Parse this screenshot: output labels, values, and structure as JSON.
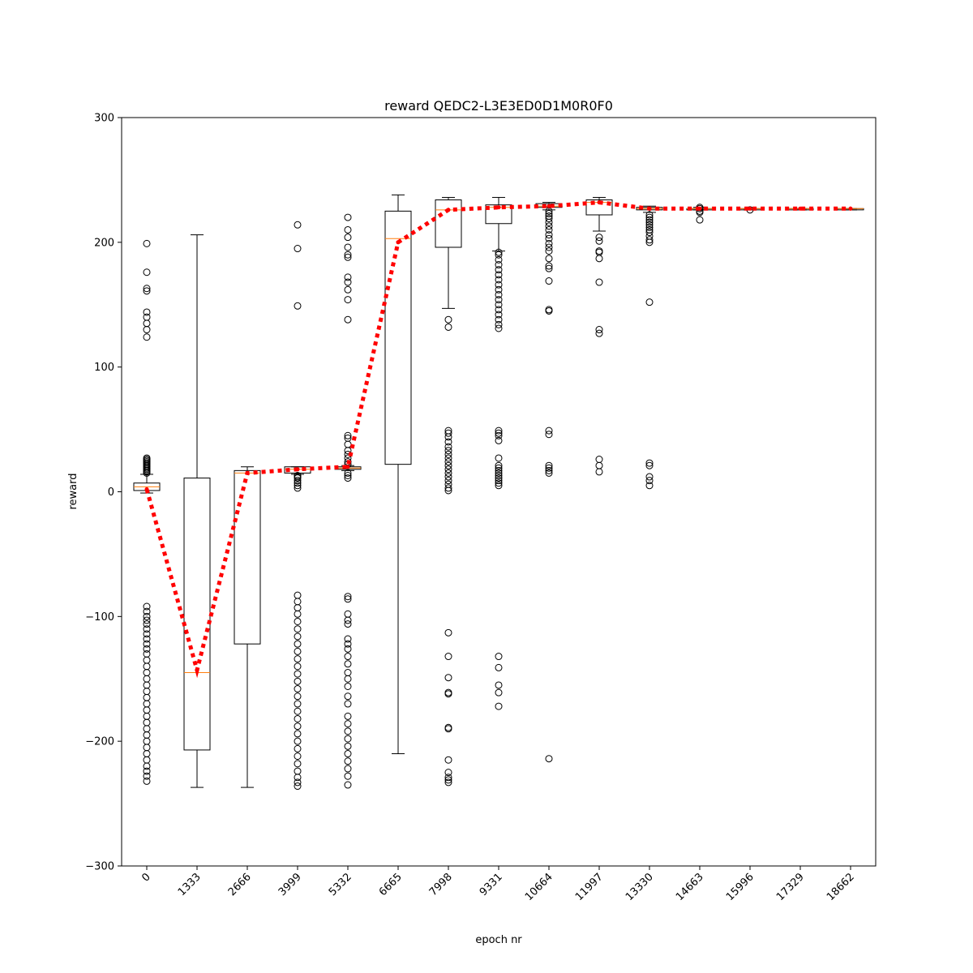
{
  "chart_data": {
    "type": "boxplot",
    "title": "reward QEDC2-L3E3ED0D1M0R0F0",
    "xlabel": "epoch nr",
    "ylabel": "reward",
    "ylim": [
      -300,
      300
    ],
    "yticks": [
      -300,
      -200,
      -100,
      0,
      100,
      200,
      300
    ],
    "categories": [
      "0",
      "1333",
      "2666",
      "3999",
      "5332",
      "6665",
      "7998",
      "9331",
      "10664",
      "11997",
      "13330",
      "14663",
      "15996",
      "17329",
      "18662"
    ],
    "grid": false,
    "legend": "none",
    "colors": {
      "box": "#000000",
      "median": "#ff7f0e",
      "mean_line": "#ff0000"
    },
    "boxes": [
      {
        "q1": 1,
        "median": 4,
        "q3": 7,
        "whisker_low": -1,
        "whisker_high": 14,
        "outliers": [
          199,
          176,
          163,
          161,
          144,
          140,
          135,
          130,
          124,
          27,
          26,
          25,
          24,
          23,
          22,
          21,
          20,
          19,
          18,
          17,
          16,
          15,
          -92,
          -96,
          -100,
          -103,
          -106,
          -110,
          -114,
          -118,
          -122,
          -126,
          -130,
          -135,
          -140,
          -145,
          -150,
          -155,
          -160,
          -165,
          -170,
          -175,
          -180,
          -185,
          -190,
          -195,
          -200,
          -205,
          -210,
          -215,
          -220,
          -224,
          -228,
          -232
        ]
      },
      {
        "q1": -207,
        "median": -145,
        "q3": 11,
        "whisker_low": -237,
        "whisker_high": 206,
        "outliers": []
      },
      {
        "q1": -122,
        "median": 15,
        "q3": 17,
        "whisker_low": -237,
        "whisker_high": 20,
        "outliers": []
      },
      {
        "q1": 15,
        "median": 18,
        "q3": 20,
        "whisker_low": 14,
        "whisker_high": 20,
        "outliers": [
          214,
          195,
          149,
          13,
          12,
          11,
          9,
          7,
          5,
          3,
          -83,
          -88,
          -93,
          -98,
          -104,
          -110,
          -116,
          -122,
          -128,
          -134,
          -140,
          -146,
          -152,
          -158,
          -164,
          -170,
          -176,
          -182,
          -188,
          -194,
          -200,
          -206,
          -212,
          -218,
          -224,
          -229,
          -233,
          -236
        ]
      },
      {
        "q1": 18,
        "median": 19,
        "q3": 20,
        "whisker_low": 17,
        "whisker_high": 21,
        "outliers": [
          220,
          210,
          204,
          196,
          190,
          188,
          172,
          168,
          162,
          154,
          138,
          45,
          43,
          38,
          33,
          30,
          27,
          24,
          22,
          15,
          13,
          11,
          -84,
          -86,
          -98,
          -103,
          -106,
          -118,
          -122,
          -126,
          -132,
          -138,
          -145,
          -150,
          -156,
          -164,
          -170,
          -180,
          -186,
          -192,
          -198,
          -204,
          -210,
          -216,
          -222,
          -228,
          -235
        ]
      },
      {
        "q1": 22,
        "median": 203,
        "q3": 225,
        "whisker_low": -210,
        "whisker_high": 238,
        "outliers": []
      },
      {
        "q1": 196,
        "median": 226,
        "q3": 234,
        "whisker_low": 147,
        "whisker_high": 236,
        "outliers": [
          138,
          132,
          49,
          47,
          44,
          40,
          36,
          33,
          30,
          27,
          24,
          21,
          18,
          15,
          12,
          9,
          6,
          3,
          1,
          -113,
          -132,
          -149,
          -161,
          -162,
          -189,
          -190,
          -215,
          -225,
          -229,
          -231,
          -233
        ]
      },
      {
        "q1": 215,
        "median": 228,
        "q3": 230,
        "whisker_low": 193,
        "whisker_high": 236,
        "outliers": [
          192,
          190,
          186,
          182,
          178,
          174,
          170,
          166,
          162,
          158,
          154,
          150,
          146,
          142,
          138,
          134,
          131,
          49,
          47,
          45,
          41,
          27,
          21,
          19,
          17,
          15,
          13,
          11,
          9,
          7,
          5,
          -132,
          -141,
          -155,
          -161,
          -172
        ]
      },
      {
        "q1": 228,
        "median": 229,
        "q3": 231,
        "whisker_low": 226,
        "whisker_high": 232,
        "outliers": [
          225,
          223,
          221,
          219,
          216,
          213,
          210,
          206,
          203,
          199,
          196,
          193,
          187,
          181,
          179,
          169,
          146,
          145,
          49,
          46,
          21,
          19,
          17,
          15,
          -214
        ]
      },
      {
        "q1": 222,
        "median": 232,
        "q3": 234,
        "whisker_low": 209,
        "whisker_high": 236,
        "outliers": [
          204,
          201,
          193,
          192,
          187,
          168,
          130,
          127,
          26,
          21,
          16
        ]
      },
      {
        "q1": 226,
        "median": 227,
        "q3": 228,
        "whisker_low": 224,
        "whisker_high": 229,
        "outliers": [
          222,
          220,
          218,
          216,
          214,
          212,
          210,
          208,
          205,
          202,
          200,
          152,
          23,
          21,
          12,
          9,
          5
        ]
      },
      {
        "q1": 226,
        "median": 227,
        "q3": 227,
        "whisker_low": 226,
        "whisker_high": 228,
        "outliers": [
          228,
          227,
          225,
          224,
          218
        ]
      },
      {
        "q1": 226,
        "median": 227,
        "q3": 227,
        "whisker_low": 226,
        "whisker_high": 227,
        "outliers": [
          226
        ]
      },
      {
        "q1": 226,
        "median": 227,
        "q3": 227,
        "whisker_low": 226,
        "whisker_high": 227,
        "outliers": []
      },
      {
        "q1": 226,
        "median": 227,
        "q3": 227,
        "whisker_low": 226,
        "whisker_high": 227,
        "outliers": []
      }
    ],
    "mean_series": {
      "values": [
        2,
        -143,
        15,
        18,
        20,
        200,
        226,
        228,
        229,
        232,
        227,
        227,
        227,
        227,
        227
      ]
    }
  }
}
